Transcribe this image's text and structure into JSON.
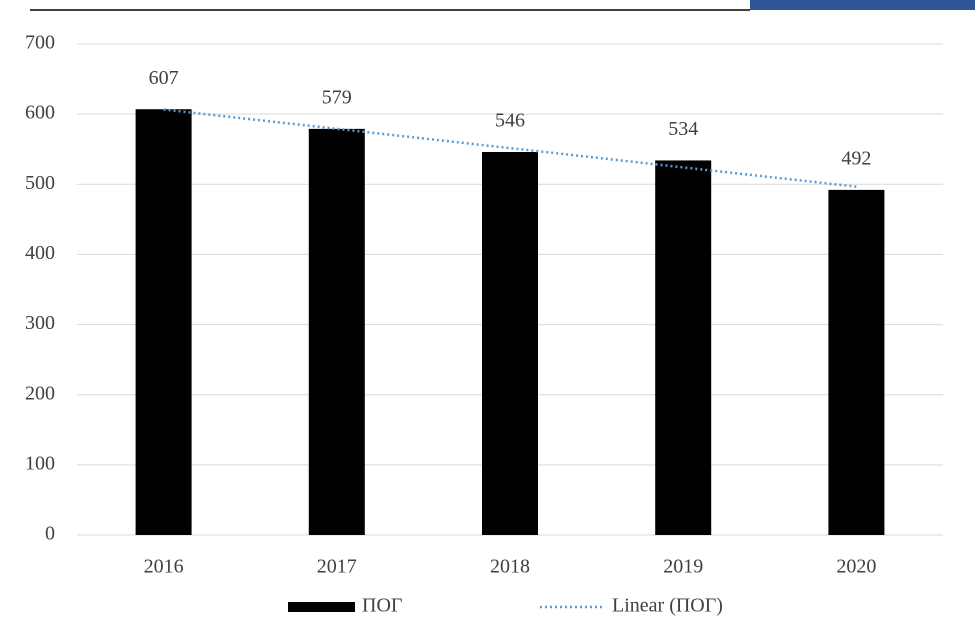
{
  "chart_data": {
    "type": "bar",
    "categories": [
      "2016",
      "2017",
      "2018",
      "2019",
      "2020"
    ],
    "series": [
      {
        "name": "ПОГ",
        "color": "#000000",
        "values": [
          607,
          579,
          546,
          534,
          492
        ]
      }
    ],
    "trendline": {
      "name": "Linear (ПОГ)",
      "color": "#5b9bd5"
    },
    "ylim": [
      0,
      700
    ],
    "yticks": [
      0,
      100,
      200,
      300,
      400,
      500,
      600,
      700
    ],
    "grid": true,
    "legend": "bottom"
  }
}
